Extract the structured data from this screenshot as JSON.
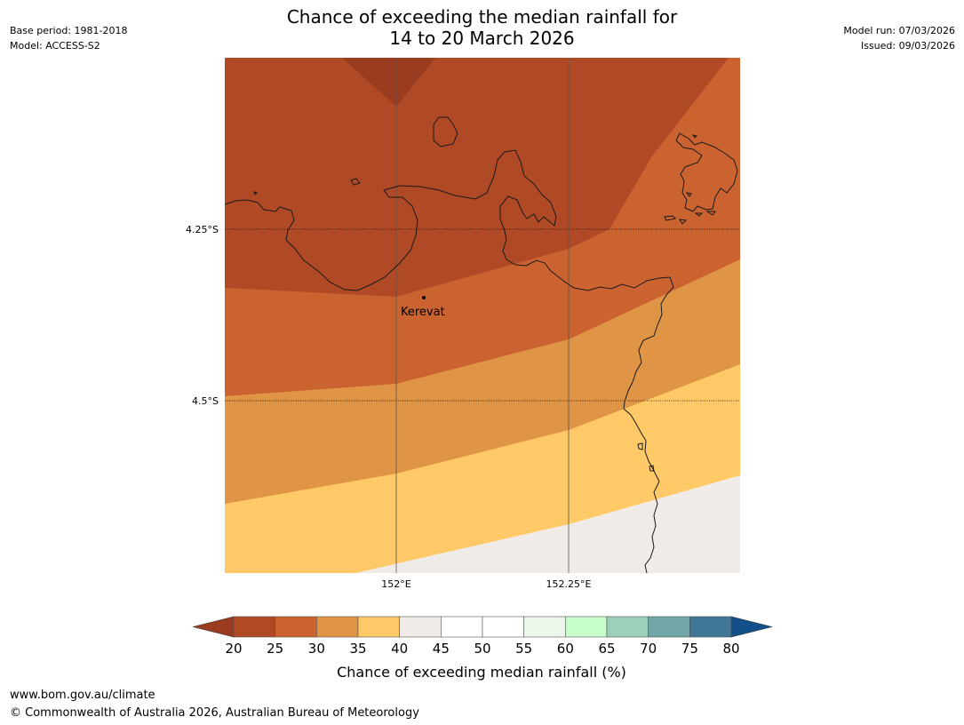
{
  "title_line1": "Chance of exceeding the median rainfall for",
  "title_line2": "14 to 20 March 2026",
  "base_period": "Base period: 1981-2018",
  "model": "Model: ACCESS-S2",
  "model_run": "Model run: 07/03/2026",
  "issued": "Issued: 09/03/2026",
  "map": {
    "lat_labels": [
      "4.25°S",
      "4.5°S"
    ],
    "lon_labels": [
      "152°E",
      "152.25°E"
    ],
    "place_label": "Kerevat"
  },
  "colorbar": {
    "label": "Chance of exceeding median rainfall (%)",
    "ticks": [
      "20",
      "25",
      "30",
      "35",
      "40",
      "45",
      "50",
      "55",
      "60",
      "65",
      "70",
      "75",
      "80"
    ],
    "colors": [
      "#b04a26",
      "#cb6330",
      "#e09445",
      "#fec966",
      "#f0ebe6",
      "#ffffff",
      "#ffffff",
      "#eaf7ea",
      "#c8fdcc",
      "#9dcfb9",
      "#71a6a7",
      "#417796"
    ],
    "under_color": "#9a3c20",
    "over_color": "#13508a"
  },
  "footer_url": "www.bom.gov.au/climate",
  "footer_copyright": "© Commonwealth of Australia 2026, Australian Bureau of Meteorology"
}
